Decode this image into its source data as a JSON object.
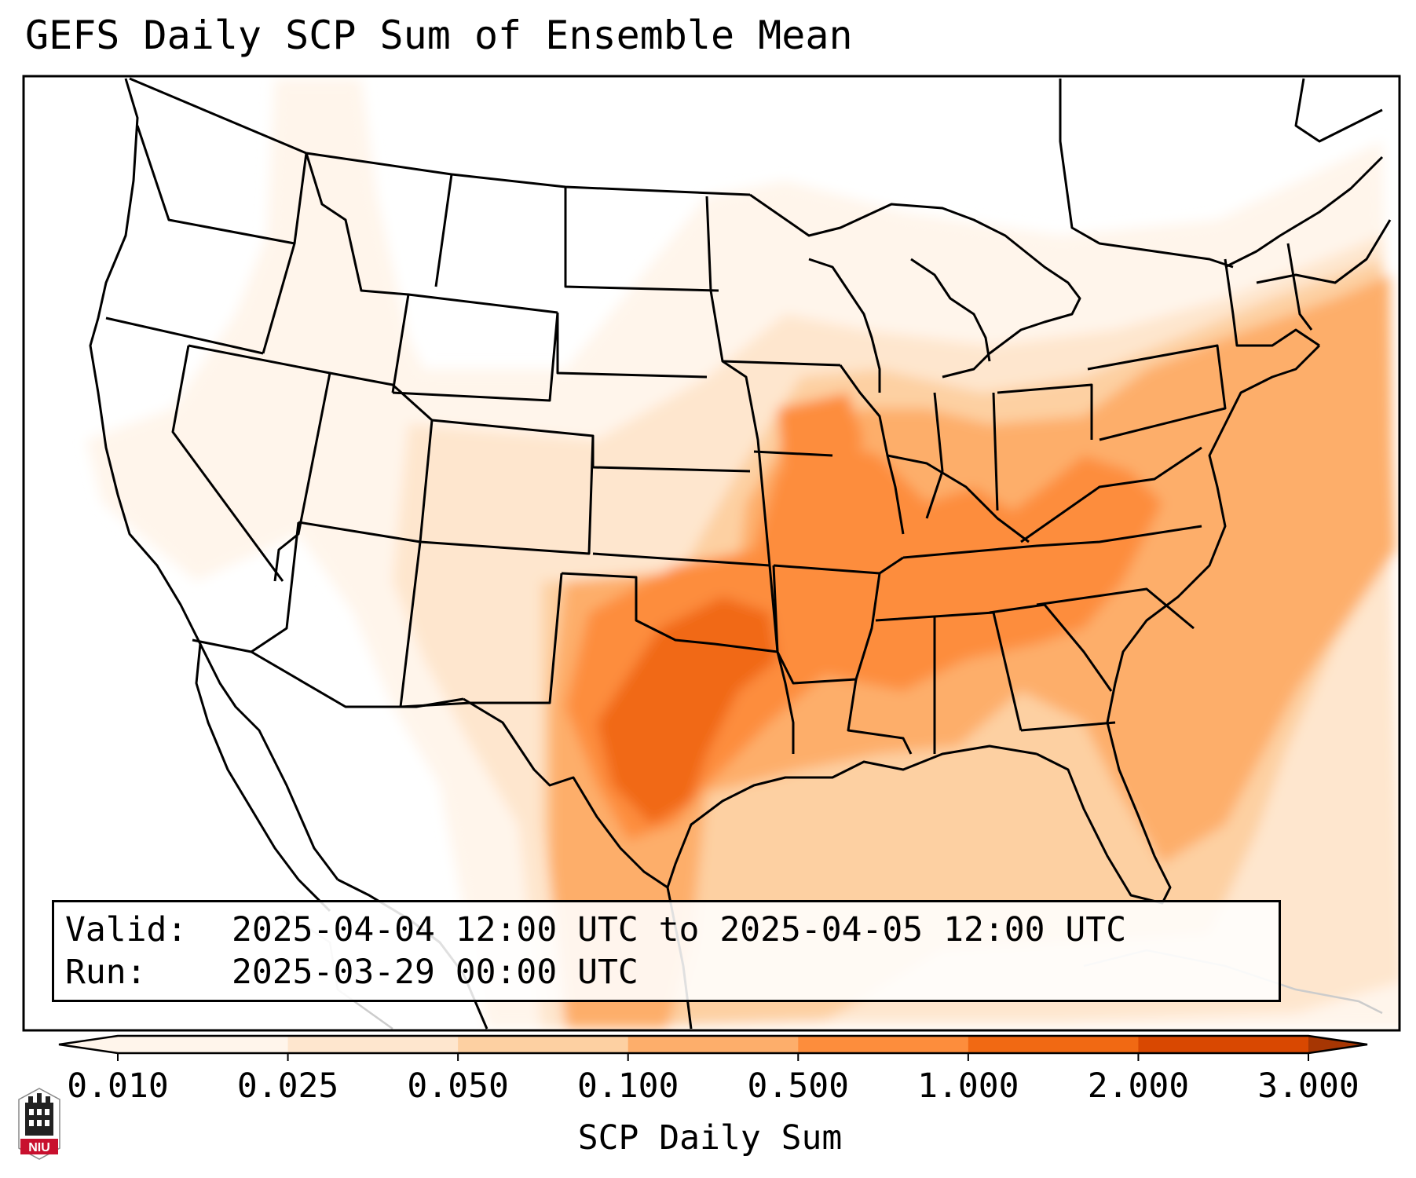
{
  "title": "GEFS Daily SCP Sum of Ensemble Mean",
  "info": {
    "valid_label": "Valid:",
    "valid_value": "2025-04-04 12:00 UTC to 2025-04-05 12:00 UTC",
    "run_label": "Run:",
    "run_value": "2025-03-29 00:00 UTC"
  },
  "colorbar": {
    "label": "SCP Daily Sum",
    "ticks": [
      "0.010",
      "0.025",
      "0.050",
      "0.100",
      "0.500",
      "1.000",
      "2.000",
      "3.000"
    ],
    "colors": [
      "#fff5eb",
      "#fee6ce",
      "#fdd0a2",
      "#fdae6b",
      "#fd8d3c",
      "#f16913",
      "#d94801",
      "#a63603"
    ],
    "extend": "both"
  },
  "logo": {
    "text": "NIU",
    "color": "#c8102e"
  },
  "map": {
    "projection": "lambert-conformal",
    "region": "CONUS",
    "field": "SCP daily sum",
    "hotspots": [
      "Oklahoma",
      "North Texas",
      "Central Texas",
      "Missouri",
      "Tennessee",
      "Virginia"
    ],
    "colors": {
      "border": "#000000",
      "faint_border": "#cccccc"
    }
  }
}
